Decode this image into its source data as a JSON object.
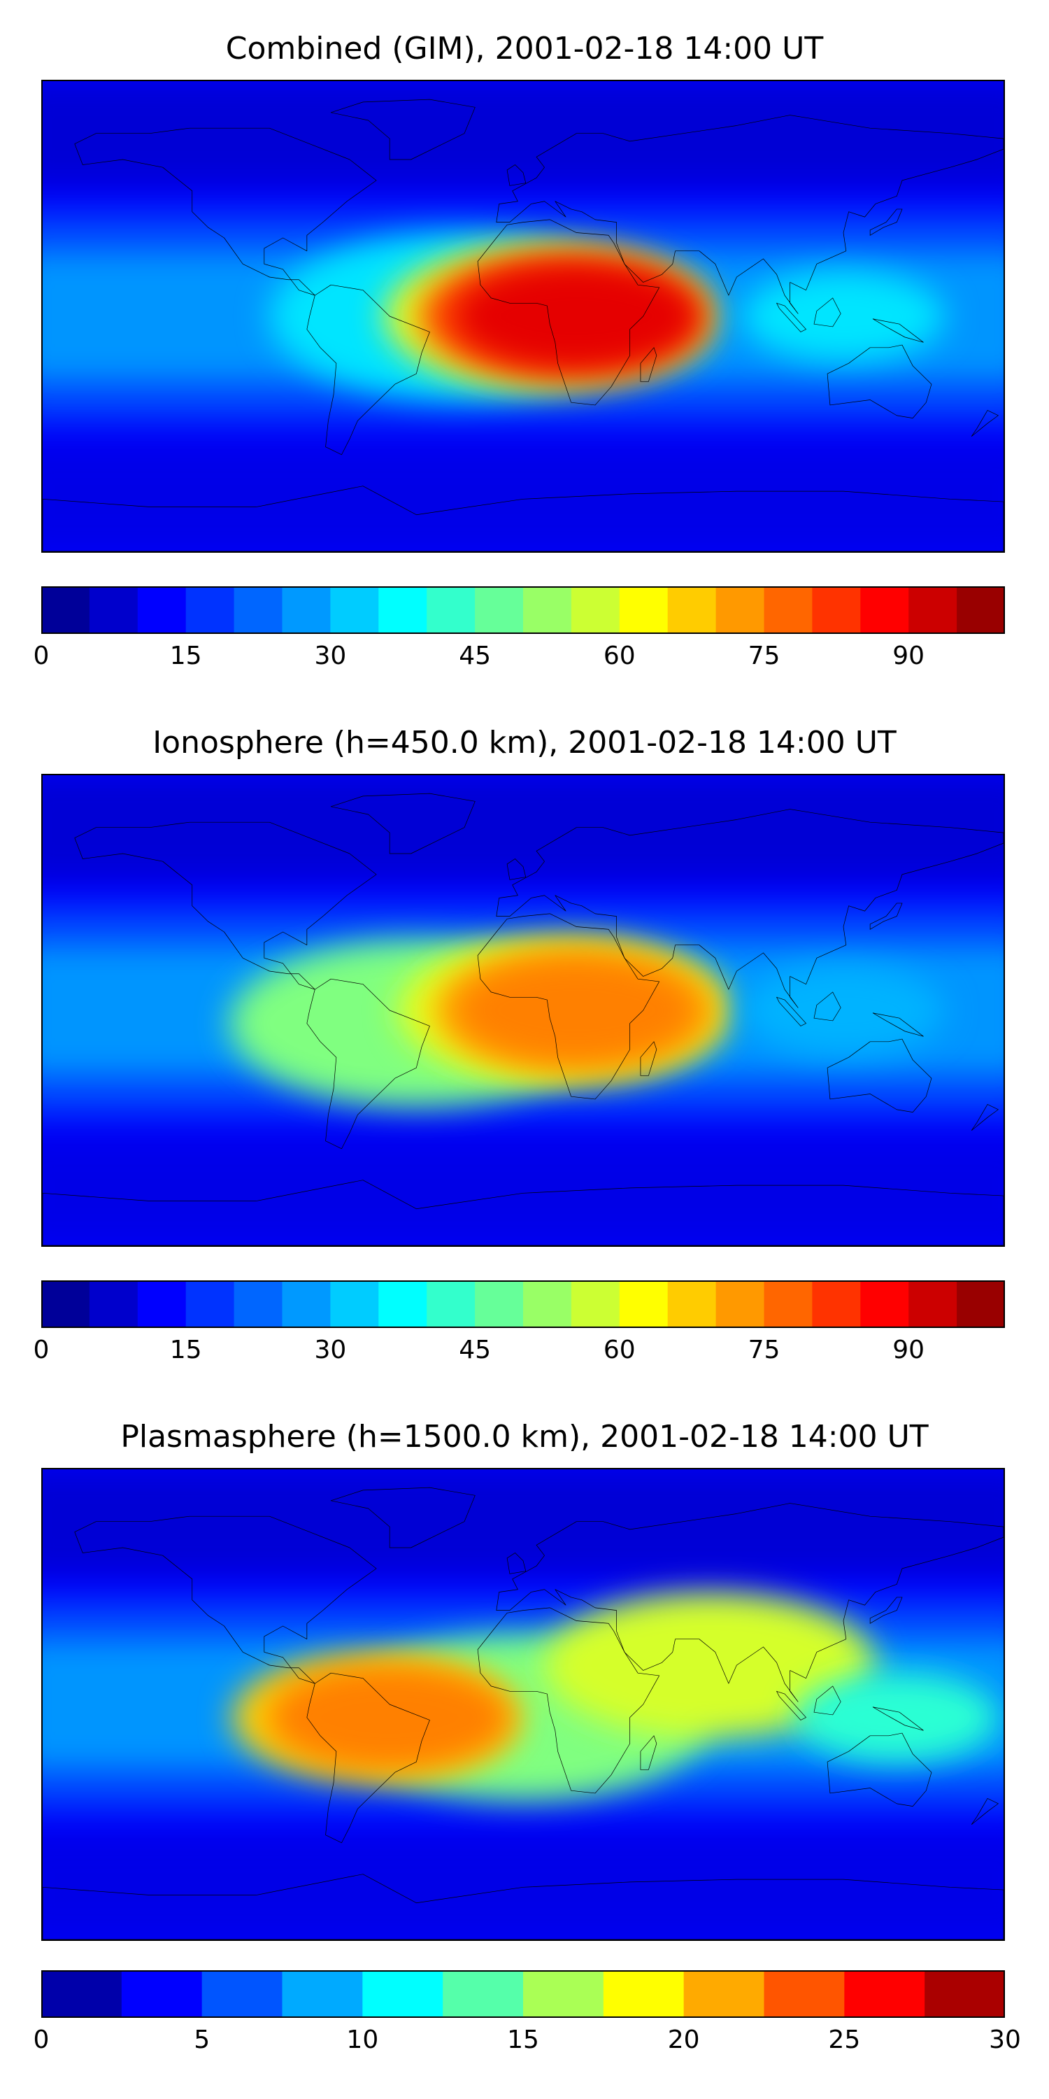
{
  "panels": [
    {
      "title": "Combined (GIM), 2001-02-18 14:00 UT",
      "colorbar": {
        "min": 0,
        "max": 100,
        "step": 5,
        "ticks": [
          "0",
          "15",
          "30",
          "45",
          "60",
          "75",
          "90"
        ],
        "tick_values": [
          0,
          15,
          30,
          45,
          60,
          75,
          90
        ]
      },
      "blobs": [
        {
          "lon": -25,
          "lat": 0,
          "level": 35
        },
        {
          "lon": 10,
          "lat": 0,
          "level": 60
        },
        {
          "lon": 15,
          "lat": 0,
          "level": 80
        },
        {
          "lon": 20,
          "lat": 0,
          "level": 90
        },
        {
          "lon": 120,
          "lat": 0,
          "level": 35
        }
      ]
    },
    {
      "title": "Ionosphere  (h=450.0 km), 2001-02-18 14:00 UT",
      "colorbar": {
        "min": 0,
        "max": 100,
        "step": 5,
        "ticks": [
          "0",
          "15",
          "30",
          "45",
          "60",
          "75",
          "90"
        ],
        "tick_values": [
          0,
          15,
          30,
          45,
          60,
          75,
          90
        ]
      },
      "blobs": [
        {
          "lon": -40,
          "lat": -5,
          "level": 50
        },
        {
          "lon": 15,
          "lat": 0,
          "level": 60
        },
        {
          "lon": 20,
          "lat": 0,
          "level": 70
        },
        {
          "lon": 20,
          "lat": 0,
          "level": 75
        },
        {
          "lon": 120,
          "lat": 0,
          "level": 30
        }
      ]
    },
    {
      "title": "Plasmasphere (h=1500.0 km), 2001-02-18 14:00 UT",
      "colorbar": {
        "min": 0,
        "max": 30,
        "step": 2.5,
        "ticks": [
          "0",
          "5",
          "10",
          "15",
          "20",
          "25",
          "30"
        ],
        "tick_values": [
          0,
          5,
          10,
          15,
          20,
          25,
          30
        ]
      },
      "blobs": [
        {
          "lon": 0,
          "lat": -5,
          "level": 15
        },
        {
          "lon": 70,
          "lat": 15,
          "level": 17.5
        },
        {
          "lon": -55,
          "lat": -5,
          "level": 20
        },
        {
          "lon": -50,
          "lat": -5,
          "level": 22.5
        },
        {
          "lon": 140,
          "lat": -5,
          "level": 12.5
        }
      ]
    }
  ],
  "chart_data": [
    {
      "type": "heatmap",
      "title": "Combined (GIM), 2001-02-18 14:00 UT",
      "colorbar_range": [
        0,
        100
      ],
      "colormap": "jet",
      "peak_region": "equatorial Africa",
      "peak_value": 95
    },
    {
      "type": "heatmap",
      "title": "Ionosphere  (h=450.0 km), 2001-02-18 14:00 UT",
      "colorbar_range": [
        0,
        100
      ],
      "colormap": "jet",
      "peak_region": "central Africa",
      "peak_value": 75
    },
    {
      "type": "heatmap",
      "title": "Plasmasphere (h=1500.0 km), 2001-02-18 14:00 UT",
      "colorbar_range": [
        0,
        30
      ],
      "colormap": "jet",
      "peak_region": "eastern Brazil",
      "peak_value": 22.5
    }
  ]
}
